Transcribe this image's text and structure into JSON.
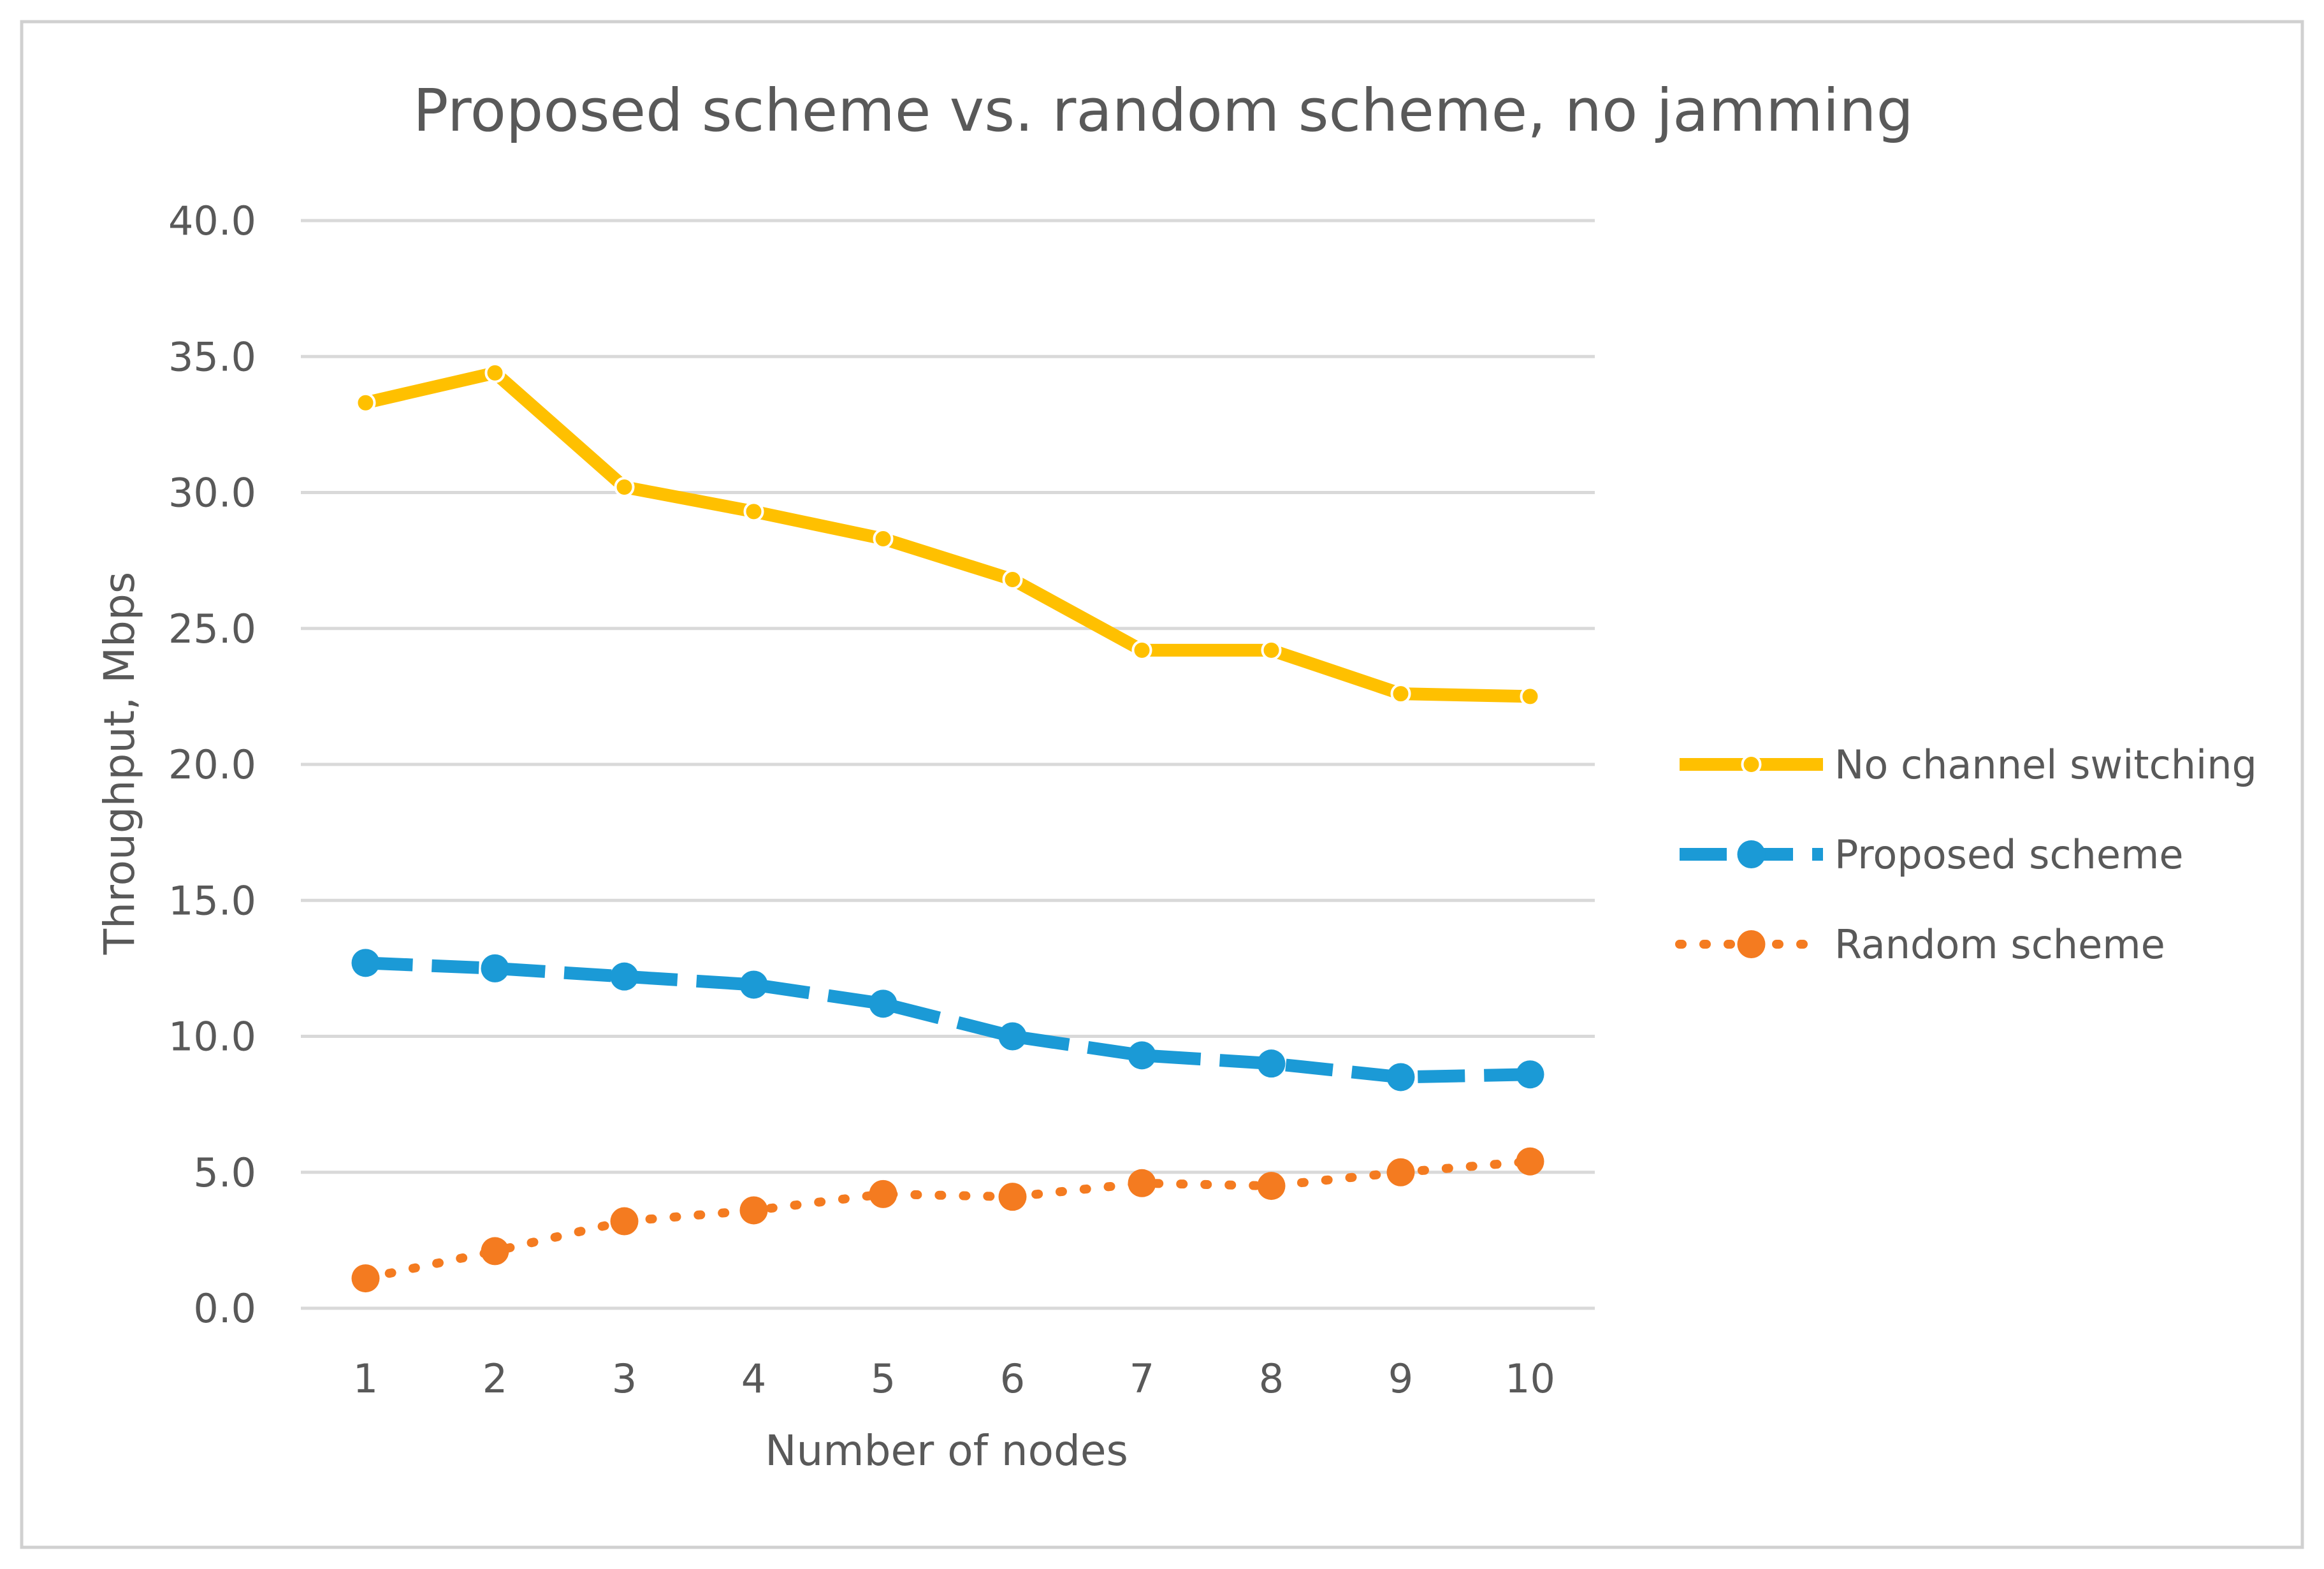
{
  "chart_data": {
    "type": "line",
    "title": "Proposed scheme vs. random scheme, no jamming",
    "xlabel": "Number of nodes",
    "ylabel": "Throughput, Mbps",
    "categories": [
      "1",
      "2",
      "3",
      "4",
      "5",
      "6",
      "7",
      "8",
      "9",
      "10"
    ],
    "ylim": [
      0,
      40
    ],
    "yticks": [
      "0.0",
      "5.0",
      "10.0",
      "15.0",
      "20.0",
      "25.0",
      "30.0",
      "35.0",
      "40.0"
    ],
    "grid": true,
    "legend_position": "right",
    "series": [
      {
        "name": "No channel switching",
        "color": "#FFC000",
        "style": "solid",
        "values": [
          33.3,
          34.4,
          30.2,
          29.3,
          28.3,
          26.8,
          24.2,
          24.2,
          22.6,
          22.5
        ]
      },
      {
        "name": "Proposed scheme",
        "color": "#1B9AD6",
        "style": "dashed",
        "values": [
          12.7,
          12.5,
          12.2,
          11.9,
          11.2,
          10.0,
          9.3,
          9.0,
          8.5,
          8.6
        ]
      },
      {
        "name": "Random scheme",
        "color": "#F47B20",
        "style": "dotted",
        "values": [
          1.1,
          2.1,
          3.2,
          3.6,
          4.2,
          4.1,
          4.6,
          4.5,
          5.0,
          5.4
        ]
      }
    ]
  }
}
